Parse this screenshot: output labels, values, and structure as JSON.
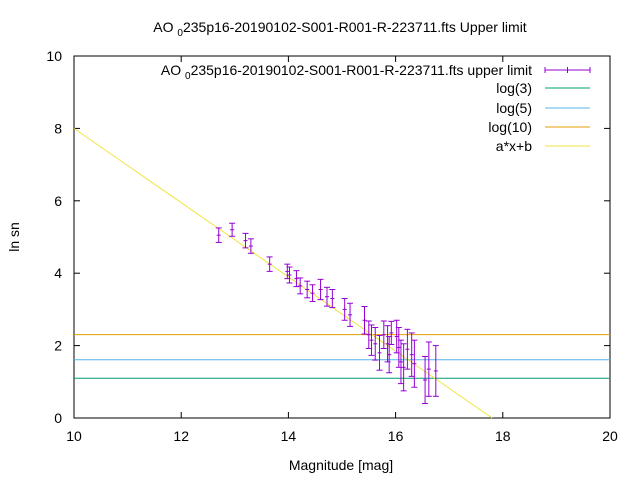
{
  "chart_data": {
    "type": "scatter",
    "title": {
      "prefix": "AO ",
      "sub": "0",
      "rest": "235p16-20190102-S001-R001-R-223711.fts Upper limit"
    },
    "xlabel": "Magnitude [mag]",
    "ylabel": "ln sn",
    "xlim": [
      10,
      20
    ],
    "ylim": [
      0,
      10
    ],
    "xticks": [
      10,
      12,
      14,
      16,
      18,
      20
    ],
    "yticks": [
      0,
      2,
      4,
      6,
      8,
      10
    ],
    "grid": false,
    "legend_position": "top-right",
    "series": [
      {
        "name_prefix": "AO ",
        "name_sub": "0",
        "name_rest": "235p16-20190102-S001-R001-R-223711.fts upper limit",
        "kind": "errorbars",
        "color": "#9400d3",
        "points": [
          {
            "x": 12.7,
            "y": 5.05,
            "e": 0.2
          },
          {
            "x": 12.95,
            "y": 5.2,
            "e": 0.18
          },
          {
            "x": 13.2,
            "y": 4.9,
            "e": 0.2
          },
          {
            "x": 13.3,
            "y": 4.75,
            "e": 0.2
          },
          {
            "x": 13.65,
            "y": 4.25,
            "e": 0.2
          },
          {
            "x": 13.98,
            "y": 4.05,
            "e": 0.2
          },
          {
            "x": 14.02,
            "y": 3.95,
            "e": 0.22
          },
          {
            "x": 14.15,
            "y": 3.85,
            "e": 0.22
          },
          {
            "x": 14.22,
            "y": 3.65,
            "e": 0.22
          },
          {
            "x": 14.35,
            "y": 3.55,
            "e": 0.23
          },
          {
            "x": 14.45,
            "y": 3.45,
            "e": 0.23
          },
          {
            "x": 14.6,
            "y": 3.55,
            "e": 0.28
          },
          {
            "x": 14.72,
            "y": 3.35,
            "e": 0.26
          },
          {
            "x": 14.82,
            "y": 3.3,
            "e": 0.25
          },
          {
            "x": 15.05,
            "y": 3.0,
            "e": 0.3
          },
          {
            "x": 15.15,
            "y": 2.85,
            "e": 0.32
          },
          {
            "x": 15.42,
            "y": 2.7,
            "e": 0.38
          },
          {
            "x": 15.5,
            "y": 2.3,
            "e": 0.38
          },
          {
            "x": 15.55,
            "y": 2.15,
            "e": 0.42
          },
          {
            "x": 15.62,
            "y": 2.05,
            "e": 0.45
          },
          {
            "x": 15.7,
            "y": 1.8,
            "e": 0.48
          },
          {
            "x": 15.78,
            "y": 2.3,
            "e": 0.38
          },
          {
            "x": 15.85,
            "y": 2.05,
            "e": 0.5
          },
          {
            "x": 15.88,
            "y": 1.75,
            "e": 0.5
          },
          {
            "x": 15.92,
            "y": 2.35,
            "e": 0.32
          },
          {
            "x": 16.02,
            "y": 2.25,
            "e": 0.45
          },
          {
            "x": 16.06,
            "y": 1.95,
            "e": 0.55
          },
          {
            "x": 16.1,
            "y": 1.55,
            "e": 0.6
          },
          {
            "x": 16.15,
            "y": 1.4,
            "e": 0.65
          },
          {
            "x": 16.22,
            "y": 1.9,
            "e": 0.55
          },
          {
            "x": 16.3,
            "y": 1.75,
            "e": 0.6
          },
          {
            "x": 16.35,
            "y": 1.5,
            "e": 0.65
          },
          {
            "x": 16.55,
            "y": 1.05,
            "e": 0.65
          },
          {
            "x": 16.62,
            "y": 1.35,
            "e": 0.75
          },
          {
            "x": 16.75,
            "y": 1.3,
            "e": 0.7
          }
        ]
      },
      {
        "name": "log(3)",
        "kind": "hline",
        "y": 1.0986,
        "color": "#009e73"
      },
      {
        "name": "log(5)",
        "kind": "hline",
        "y": 1.6094,
        "color": "#56b4e9"
      },
      {
        "name": "log(10)",
        "kind": "hline",
        "y": 2.3026,
        "color": "#e69f00"
      },
      {
        "name": "a*x+b",
        "kind": "fitline",
        "x": [
          10,
          17.8
        ],
        "y": [
          8.0,
          0.0
        ],
        "color": "#f0e442"
      }
    ]
  }
}
